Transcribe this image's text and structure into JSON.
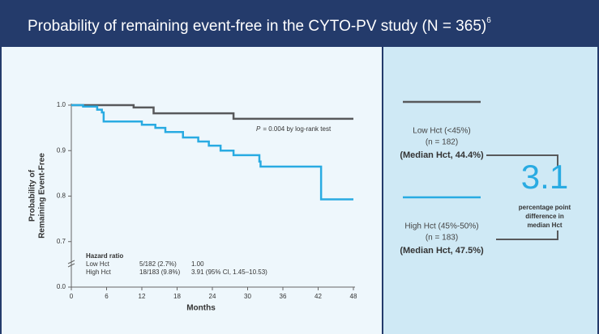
{
  "header": {
    "title": "Probability of remaining event-free in the CYTO-PV study (N = 365)",
    "title_sup": "6"
  },
  "chart_data": {
    "type": "step",
    "y_label": [
      "Probability of",
      "Remaining Event-Free"
    ],
    "x_label": "Months",
    "xlim": [
      0,
      48
    ],
    "xticks": [
      0,
      6,
      12,
      18,
      24,
      30,
      36,
      42,
      48
    ],
    "ylim": [
      0.6,
      1.0
    ],
    "y_axis_break": true,
    "yticks": [
      {
        "value": 0,
        "label": "0.0"
      },
      {
        "value": 0.7,
        "label": "0.7"
      },
      {
        "value": 0.8,
        "label": "0.8"
      },
      {
        "value": 0.9,
        "label": "0.9"
      },
      {
        "value": 1,
        "label": "1.0"
      }
    ],
    "annotation_p": "P",
    "annotation": "= 0.004 by log-rank test",
    "hazard_table": {
      "title": "Hazard ratio",
      "rows": [
        [
          "Low Hct",
          "5/182 (2.7%)",
          "1.00"
        ],
        [
          "High Hct",
          "18/183 (9.8%)",
          "3.91 (95% CI, 1.45–10.53)"
        ]
      ]
    },
    "series": [
      {
        "name": "Low Hct (<45%)",
        "n": "(n = 182)",
        "median": "(Median Hct, 44.4%)",
        "color": "#58595b",
        "x": [
          0,
          10.6,
          14,
          27.6,
          48
        ],
        "values": [
          1.0,
          0.995,
          0.982,
          0.97,
          0.97
        ]
      },
      {
        "name": "High Hct (45%-50%)",
        "n": "(n = 183)",
        "median": "(Median Hct, 47.5%)",
        "color": "#29abe2",
        "x": [
          0,
          2,
          4.4,
          5.2,
          5.5,
          12,
          14.3,
          16,
          19,
          21.6,
          23.4,
          25.4,
          27.6,
          32,
          32.2,
          42.5,
          48
        ],
        "values": [
          1.0,
          0.997,
          0.99,
          0.984,
          0.964,
          0.957,
          0.95,
          0.941,
          0.929,
          0.92,
          0.911,
          0.9,
          0.89,
          0.876,
          0.865,
          0.793,
          0.793
        ]
      }
    ]
  },
  "callout": {
    "value": 3.1,
    "text": [
      "percentage point",
      "difference in",
      "median Hct"
    ]
  }
}
